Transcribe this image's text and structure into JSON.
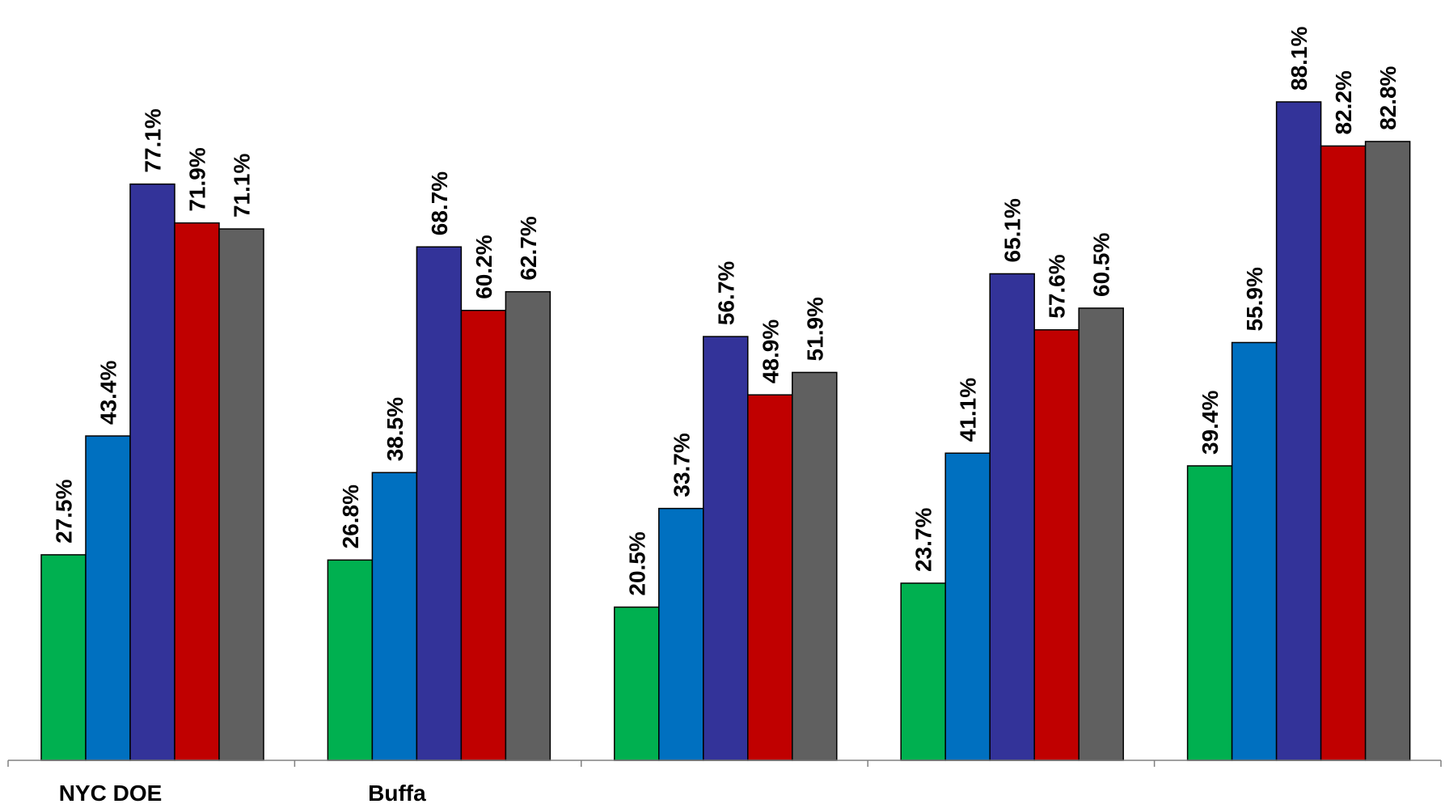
{
  "chart_data": {
    "type": "bar",
    "categories": [
      "NYC DOE",
      "Buffa",
      "",
      "",
      ""
    ],
    "series": [
      {
        "color": "#00B050",
        "values": [
          27.5,
          26.8,
          20.5,
          23.7,
          39.4
        ]
      },
      {
        "color": "#0070C0",
        "values": [
          43.4,
          38.5,
          33.7,
          41.1,
          55.9
        ]
      },
      {
        "color": "#333399",
        "values": [
          77.1,
          68.7,
          56.7,
          65.1,
          88.1
        ]
      },
      {
        "color": "#C00000",
        "values": [
          71.9,
          60.2,
          48.9,
          57.6,
          82.2
        ]
      },
      {
        "color": "#606060",
        "values": [
          71.1,
          62.7,
          51.9,
          60.5,
          82.8
        ]
      }
    ],
    "data_labels": [
      [
        "27.5%",
        "26.8%",
        "20.5%",
        "23.7%",
        "39.4%"
      ],
      [
        "43.4%",
        "38.5%",
        "33.7%",
        "41.1%",
        "55.9%"
      ],
      [
        "77.1%",
        "68.7%",
        "56.7%",
        "65.1%",
        "88.1%"
      ],
      [
        "71.9%",
        "60.2%",
        "48.9%",
        "57.6%",
        "82.2%"
      ],
      [
        "71.1%",
        "62.7%",
        "51.9%",
        "60.5%",
        "82.8%"
      ]
    ],
    "ylim": [
      0,
      100
    ],
    "grid": false,
    "legend": "none",
    "title": "",
    "xlabel": "",
    "ylabel": ""
  }
}
